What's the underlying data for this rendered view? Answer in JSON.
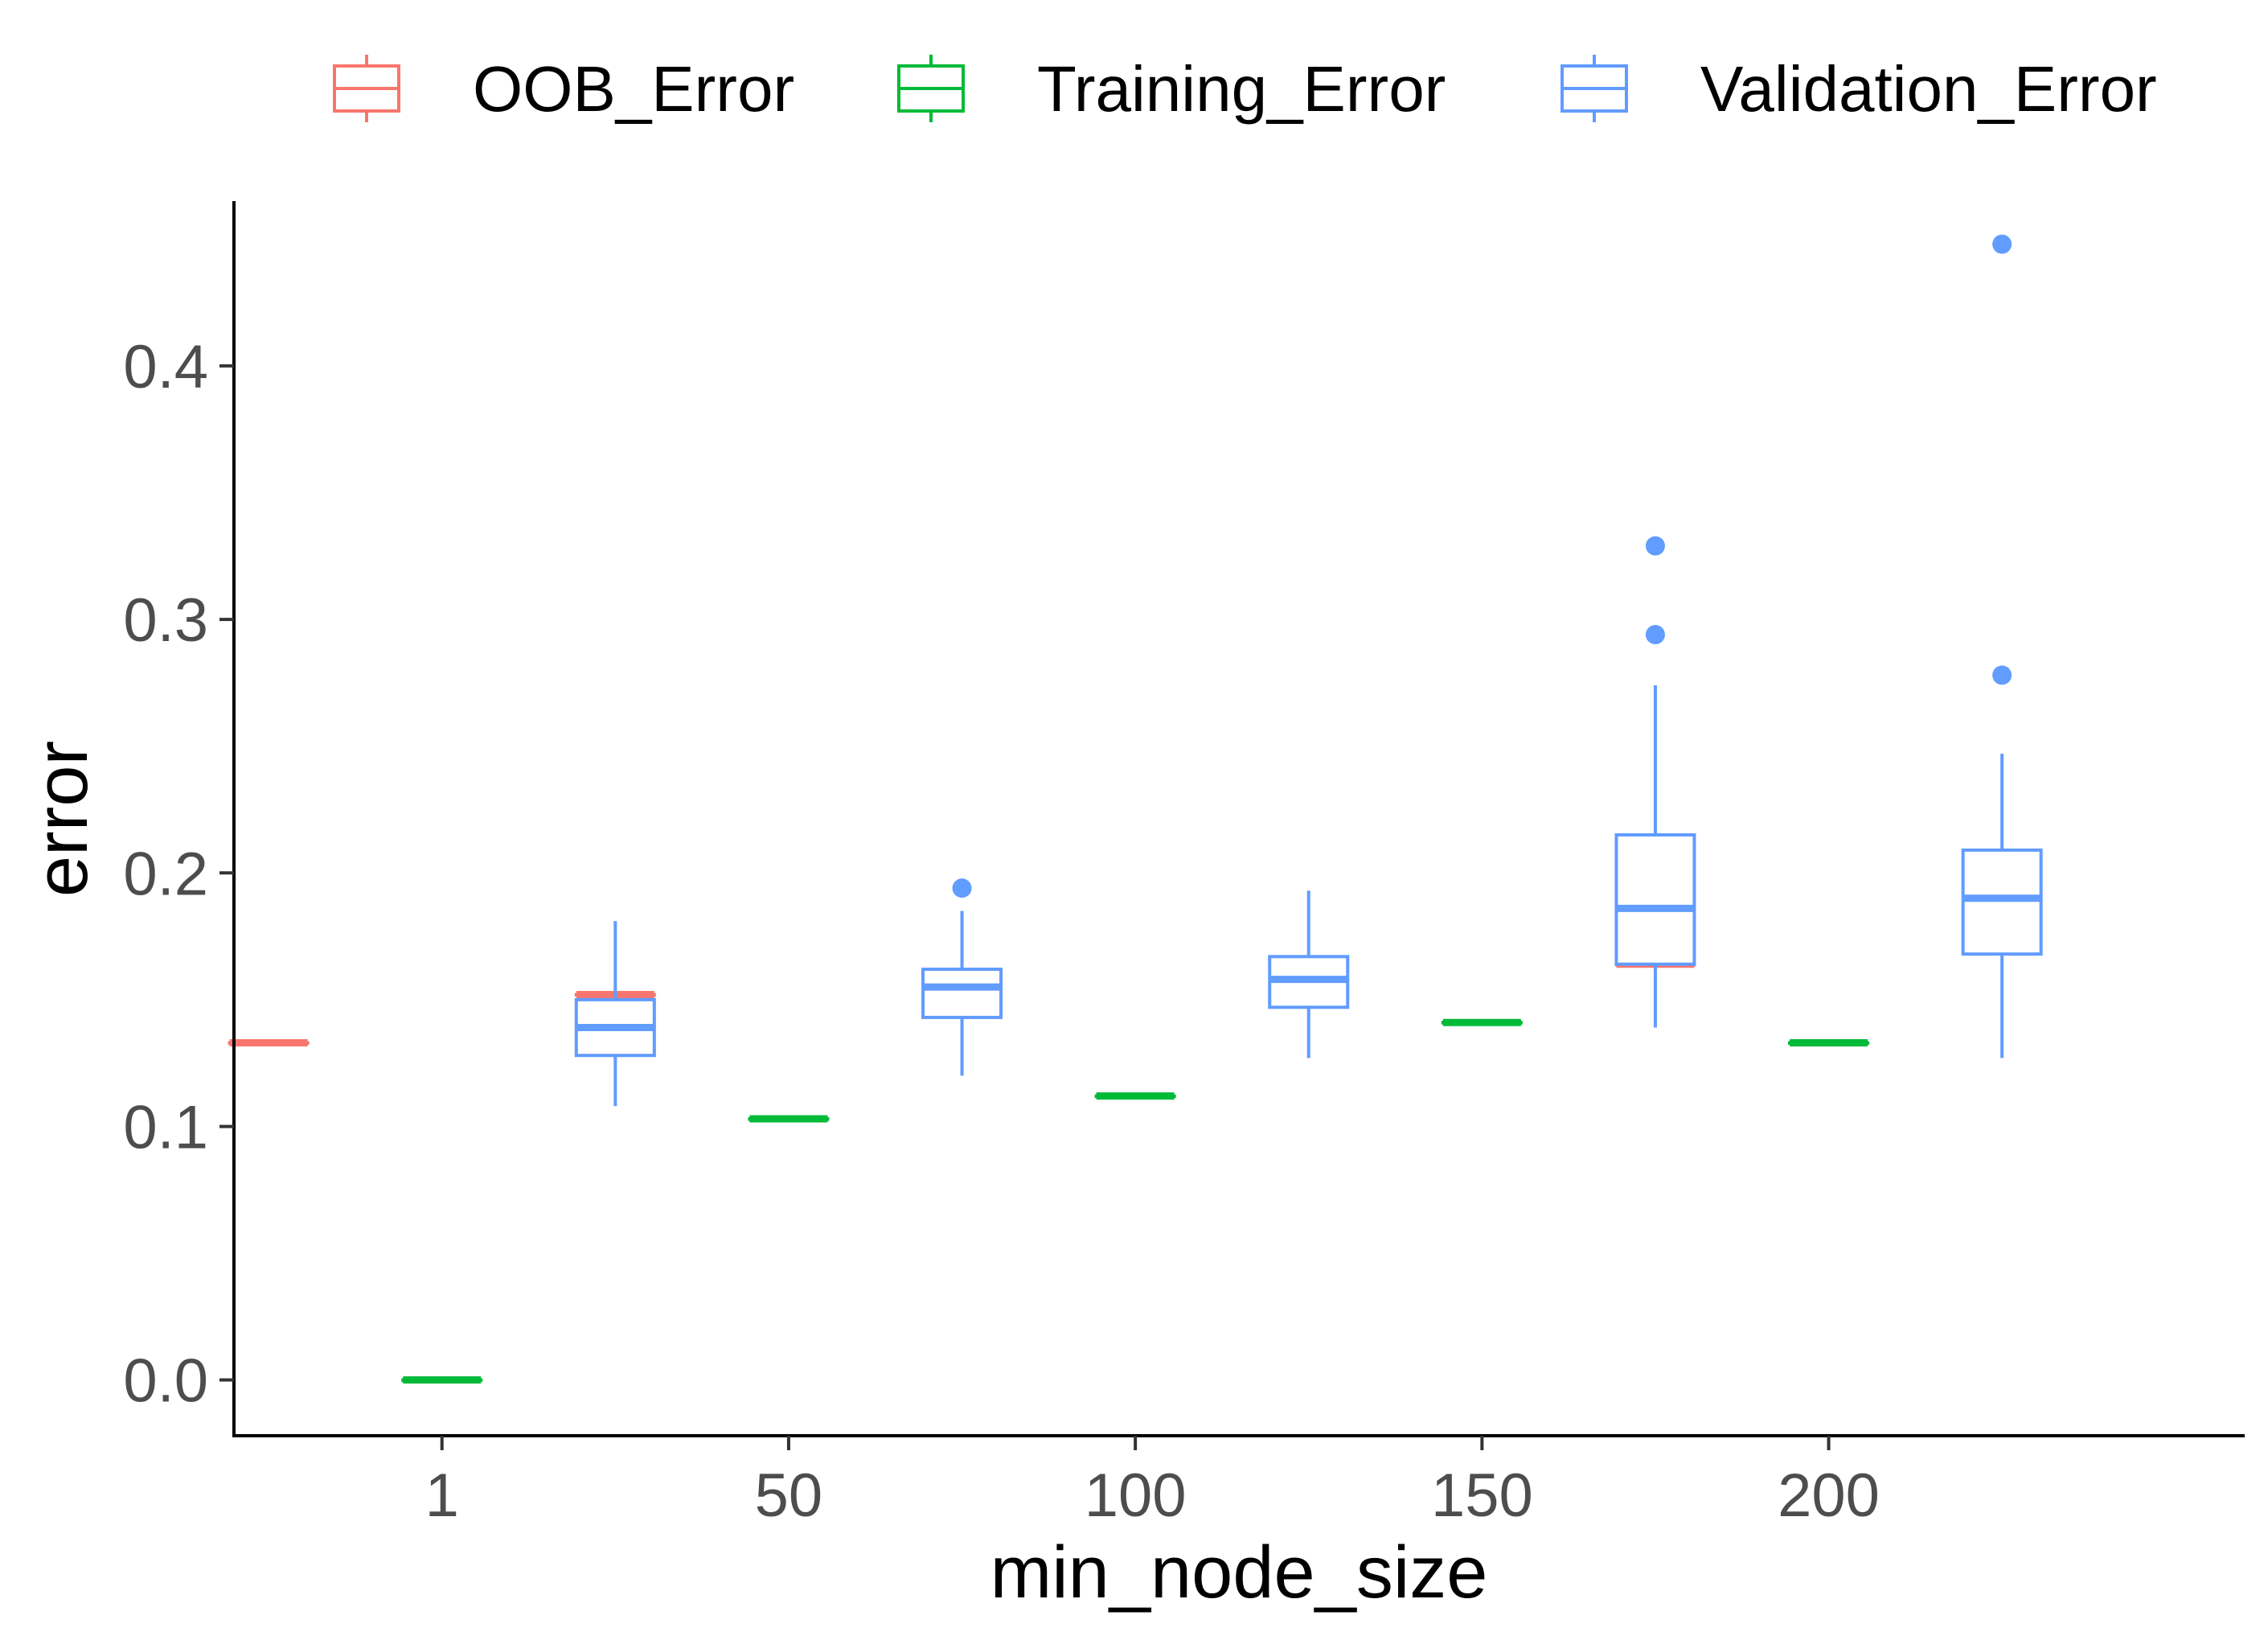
{
  "chart_data": {
    "type": "box",
    "xlabel": "min_node_size",
    "ylabel": "error",
    "categories": [
      "1",
      "50",
      "100",
      "150",
      "200"
    ],
    "ylim": [
      -0.022,
      0.465
    ],
    "yticks": [
      0.0,
      0.1,
      0.2,
      0.3,
      0.4
    ],
    "ytick_labels": [
      "0.0",
      "0.1",
      "0.2",
      "0.3",
      "0.4"
    ],
    "grid": false,
    "legend_position": "top",
    "series": [
      {
        "name": "OOB_Error",
        "color": "#F8766D",
        "boxes": [
          {
            "min": 0.133,
            "q1": 0.133,
            "median": 0.133,
            "q3": 0.133,
            "max": 0.133,
            "outliers": []
          },
          {
            "min": 0.152,
            "q1": 0.152,
            "median": 0.152,
            "q3": 0.152,
            "max": 0.152,
            "outliers": []
          },
          {
            "min": 0.161,
            "q1": 0.161,
            "median": 0.161,
            "q3": 0.161,
            "max": 0.161,
            "outliers": []
          },
          {
            "min": 0.166,
            "q1": 0.166,
            "median": 0.166,
            "q3": 0.166,
            "max": 0.166,
            "outliers": []
          },
          {
            "min": 0.164,
            "q1": 0.164,
            "median": 0.164,
            "q3": 0.164,
            "max": 0.164,
            "outliers": []
          }
        ]
      },
      {
        "name": "Training_Error",
        "color": "#00BA38",
        "boxes": [
          {
            "min": 0.0,
            "q1": 0.0,
            "median": 0.0,
            "q3": 0.0,
            "max": 0.0,
            "outliers": []
          },
          {
            "min": 0.103,
            "q1": 0.103,
            "median": 0.103,
            "q3": 0.103,
            "max": 0.103,
            "outliers": []
          },
          {
            "min": 0.112,
            "q1": 0.112,
            "median": 0.112,
            "q3": 0.112,
            "max": 0.112,
            "outliers": []
          },
          {
            "min": 0.141,
            "q1": 0.141,
            "median": 0.141,
            "q3": 0.141,
            "max": 0.141,
            "outliers": []
          },
          {
            "min": 0.133,
            "q1": 0.133,
            "median": 0.133,
            "q3": 0.133,
            "max": 0.133,
            "outliers": []
          }
        ]
      },
      {
        "name": "Validation_Error",
        "color": "#619CFF",
        "boxes": [
          {
            "min": 0.108,
            "q1": 0.128,
            "median": 0.139,
            "q3": 0.15,
            "max": 0.181,
            "outliers": []
          },
          {
            "min": 0.12,
            "q1": 0.143,
            "median": 0.155,
            "q3": 0.162,
            "max": 0.185,
            "outliers": [
              0.194
            ]
          },
          {
            "min": 0.127,
            "q1": 0.147,
            "median": 0.158,
            "q3": 0.167,
            "max": 0.193,
            "outliers": []
          },
          {
            "min": 0.139,
            "q1": 0.164,
            "median": 0.186,
            "q3": 0.215,
            "max": 0.274,
            "outliers": [
              0.294,
              0.329
            ]
          },
          {
            "min": 0.127,
            "q1": 0.168,
            "median": 0.19,
            "q3": 0.209,
            "max": 0.247,
            "outliers": [
              0.278,
              0.448
            ]
          }
        ]
      }
    ]
  }
}
